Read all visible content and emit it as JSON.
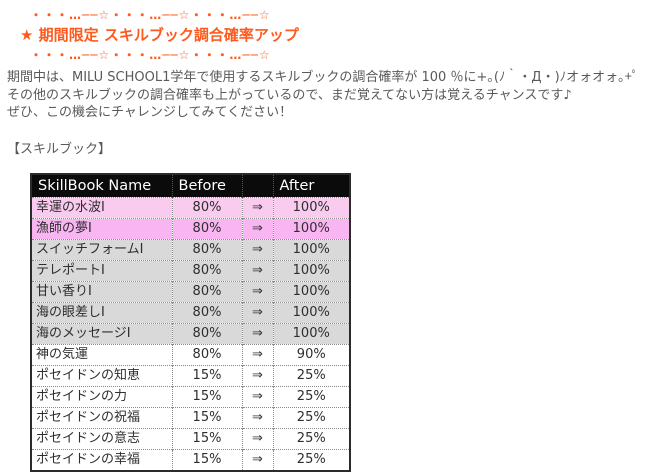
{
  "notice": {
    "decor_line": "・・・…──☆・・・…──☆・・・…──☆",
    "title": "★ 期間限定 スキルブック調合確率アップ",
    "body_lines": [
      "期間中は、MILU SCHOOL1学年で使用するスキルブックの調合確率が 100 ％に+｡(ﾉ｀・Д・)ﾉオォオォ｡+ﾟ",
      "その他のスキルブックの調合確率も上がっているので、まだ覚えてない方は覚えるチャンスです♪",
      "ぜひ、この機会にチャレンジしてみてください！"
    ],
    "section_label": "【スキルブック】"
  },
  "colors": {
    "accent_orange": "#ff5a1e",
    "body_text": "#595959",
    "table_header_bg": "#0b0b0b",
    "table_header_text": "#ffffff",
    "row_pink_light": "#f8cbef",
    "row_pink": "#f9b5f1",
    "row_gray": "#d9d9d9",
    "row_white": "#ffffff"
  },
  "skillbook_table": {
    "columns": {
      "name": "SkillBook Name",
      "before": "Before",
      "arrow": "",
      "after": "After"
    },
    "arrow_glyph": "⇒",
    "rows": [
      {
        "name": "幸運の水波Ⅰ",
        "before": "80%",
        "after": "100%"
      },
      {
        "name": "漁師の夢Ⅰ",
        "before": "80%",
        "after": "100%"
      },
      {
        "name": "スイッチフォームⅠ",
        "before": "80%",
        "after": "100%"
      },
      {
        "name": "テレポートⅠ",
        "before": "80%",
        "after": "100%"
      },
      {
        "name": "甘い香りⅠ",
        "before": "80%",
        "after": "100%"
      },
      {
        "name": "海の眼差しⅠ",
        "before": "80%",
        "after": "100%"
      },
      {
        "name": "海のメッセージⅠ",
        "before": "80%",
        "after": "100%"
      },
      {
        "name": "神の気運",
        "before": "80%",
        "after": "90%"
      },
      {
        "name": "ポセイドンの知恵",
        "before": "15%",
        "after": "25%"
      },
      {
        "name": "ポセイドンの力",
        "before": "15%",
        "after": "25%"
      },
      {
        "name": "ポセイドンの祝福",
        "before": "15%",
        "after": "25%"
      },
      {
        "name": "ポセイドンの意志",
        "before": "15%",
        "after": "25%"
      },
      {
        "name": "ポセイドンの幸福",
        "before": "15%",
        "after": "25%"
      }
    ]
  }
}
